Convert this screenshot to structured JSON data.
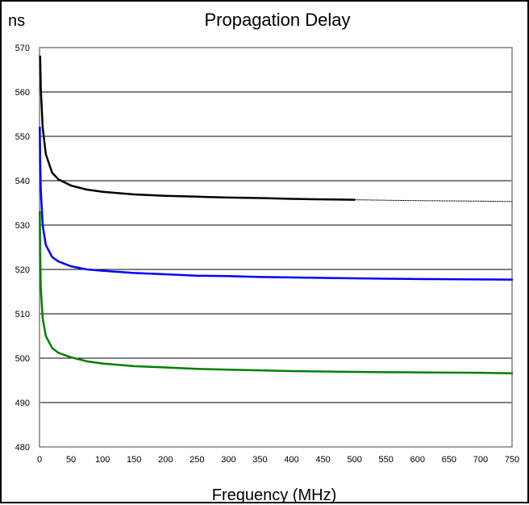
{
  "chart_data": {
    "type": "line",
    "title": "Propagation Delay",
    "ylabel": "ns",
    "xlabel": "Frequency (MHz)",
    "xlim": [
      0,
      750
    ],
    "ylim": [
      480,
      570
    ],
    "xticks": [
      "0",
      "50",
      "100",
      "150",
      "200",
      "250",
      "300",
      "350",
      "400",
      "450",
      "500",
      "550",
      "600",
      "650",
      "700",
      "750"
    ],
    "yticks": [
      "480",
      "490",
      "500",
      "510",
      "520",
      "530",
      "540",
      "550",
      "560",
      "570"
    ],
    "grid": "horizontal",
    "plot_background": "#ffffff",
    "plot_border_color": "#808080",
    "series": [
      {
        "color": "#000000",
        "line_style": "solid",
        "x": [
          1,
          2,
          5,
          10,
          20,
          30,
          50,
          75,
          100,
          150,
          200,
          250,
          300,
          350,
          400,
          450,
          500
        ],
        "y": [
          568,
          561,
          552,
          546,
          541.8,
          540.3,
          538.9,
          538.0,
          537.5,
          536.9,
          536.6,
          536.4,
          536.2,
          536.1,
          535.9,
          535.8,
          535.7
        ]
      },
      {
        "color": "#000000",
        "line_style": "dotted",
        "x": [
          500,
          550,
          600,
          650,
          700,
          750
        ],
        "y": [
          535.7,
          535.6,
          535.5,
          535.45,
          535.4,
          535.3
        ]
      },
      {
        "color": "#0000ff",
        "line_style": "solid",
        "x": [
          0.5,
          1,
          2,
          5,
          10,
          20,
          30,
          50,
          75,
          100,
          150,
          200,
          250,
          300,
          350,
          400,
          450,
          500,
          550,
          600,
          650,
          700,
          750
        ],
        "y": [
          552,
          545,
          538,
          530,
          525.5,
          522.8,
          521.8,
          520.7,
          520.0,
          519.7,
          519.2,
          518.9,
          518.6,
          518.5,
          518.3,
          518.2,
          518.1,
          518.0,
          517.9,
          517.85,
          517.8,
          517.75,
          517.7
        ]
      },
      {
        "color": "#008000",
        "line_style": "solid",
        "x": [
          0.5,
          1,
          2,
          5,
          10,
          20,
          30,
          50,
          75,
          100,
          150,
          200,
          250,
          300,
          350,
          400,
          450,
          500,
          550,
          600,
          650,
          700,
          750
        ],
        "y": [
          533,
          525,
          516,
          509,
          505,
          502.3,
          501.2,
          500.2,
          499.3,
          498.8,
          498.2,
          497.9,
          497.6,
          497.4,
          497.25,
          497.1,
          497.0,
          496.9,
          496.85,
          496.8,
          496.75,
          496.7,
          496.6
        ]
      }
    ]
  }
}
